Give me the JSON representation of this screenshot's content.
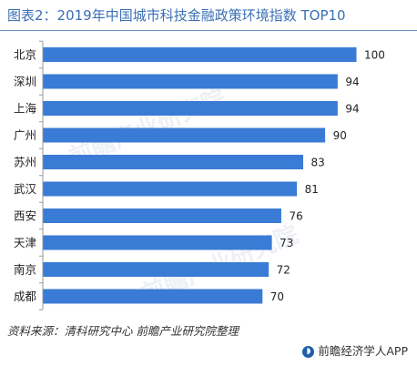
{
  "title": "图表2：2019年中国城市科技金融政策环境指数 TOP10",
  "source": "资料来源：清科研究中心  前瞻产业研究院整理",
  "brand": {
    "name": "前瞻经济学人APP",
    "icon": "qianzhan-logo-icon"
  },
  "watermark": "前瞻产业研究院",
  "colors": {
    "bar": "#3a7bd5",
    "title": "#3a6fb5",
    "axis": "#9a9a9a",
    "text": "#222222"
  },
  "chart_data": {
    "type": "bar",
    "orientation": "horizontal",
    "title": "",
    "xlabel": "",
    "ylabel": "",
    "categories": [
      "北京",
      "深圳",
      "上海",
      "广州",
      "苏州",
      "武汉",
      "西安",
      "天津",
      "南京",
      "成都"
    ],
    "values": [
      100,
      94,
      94,
      90,
      83,
      81,
      76,
      73,
      72,
      70
    ],
    "xlim": [
      0,
      100
    ],
    "grid": false,
    "legend": "none",
    "data_labels": true
  }
}
